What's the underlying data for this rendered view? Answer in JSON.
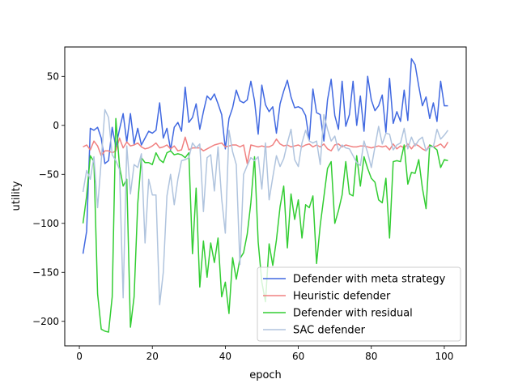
{
  "chart_data": {
    "type": "line",
    "title": "",
    "xlabel": "epoch",
    "ylabel": "utility",
    "xlim": [
      -4,
      106
    ],
    "ylim": [
      -225,
      80
    ],
    "xticks": [
      0,
      20,
      40,
      60,
      80,
      100
    ],
    "yticks": [
      -200,
      -150,
      -100,
      -50,
      0,
      50
    ],
    "legend_position": "lower-right",
    "grid": false,
    "x": [
      1,
      2,
      3,
      4,
      5,
      6,
      7,
      8,
      9,
      10,
      11,
      12,
      13,
      14,
      15,
      16,
      17,
      18,
      19,
      20,
      21,
      22,
      23,
      24,
      25,
      26,
      27,
      28,
      29,
      30,
      31,
      32,
      33,
      34,
      35,
      36,
      37,
      38,
      39,
      40,
      41,
      42,
      43,
      44,
      45,
      46,
      47,
      48,
      49,
      50,
      51,
      52,
      53,
      54,
      55,
      56,
      57,
      58,
      59,
      60,
      61,
      62,
      63,
      64,
      65,
      66,
      67,
      68,
      69,
      70,
      71,
      72,
      73,
      74,
      75,
      76,
      77,
      78,
      79,
      80,
      81,
      82,
      83,
      84,
      85,
      86,
      87,
      88,
      89,
      90,
      91,
      92,
      93,
      94,
      95,
      96,
      97,
      98,
      99,
      100,
      101
    ],
    "series": [
      {
        "name": "Defender with meta strategy",
        "color": "#4169e1",
        "values": [
          -131,
          -108,
          -3,
          -5,
          -2,
          -13,
          -39,
          -36,
          -2,
          -22,
          -4,
          12,
          -17,
          12,
          -19,
          -3,
          -20,
          -13,
          -6,
          -8,
          -5,
          23,
          -13,
          -3,
          -25,
          -2,
          3,
          -6,
          39,
          3,
          8,
          22,
          -4,
          14,
          30,
          26,
          32,
          22,
          11,
          -24,
          7,
          18,
          36,
          25,
          23,
          26,
          45,
          25,
          -9,
          41,
          21,
          14,
          19,
          -8,
          22,
          35,
          46,
          29,
          18,
          19,
          17,
          10,
          -15,
          37,
          13,
          11,
          -16,
          26,
          47,
          10,
          -4,
          45,
          -1,
          11,
          45,
          0,
          30,
          -6,
          50,
          26,
          15,
          20,
          31,
          -7,
          48,
          2,
          14,
          4,
          36,
          5,
          68,
          62,
          40,
          20,
          29,
          7,
          23,
          4,
          45,
          20,
          20
        ]
      },
      {
        "name": "Heuristic defender",
        "color": "#f08080",
        "values": [
          -22,
          -20,
          -25,
          -16,
          -21,
          -31,
          -26,
          -26,
          -28,
          -26,
          -13,
          -23,
          -17,
          -21,
          -20,
          -18,
          -22,
          -24,
          -23,
          -21,
          -18,
          -23,
          -22,
          -20,
          -24,
          -21,
          -26,
          -25,
          -12,
          -25,
          -23,
          -23,
          -23,
          -26,
          -24,
          -22,
          -20,
          -19,
          -18,
          -22,
          -21,
          -20,
          -20,
          -22,
          -20,
          -39,
          -20,
          -21,
          -22,
          -21,
          -22,
          -22,
          -20,
          -14,
          -19,
          -21,
          -20,
          -22,
          -21,
          -20,
          -22,
          -20,
          -19,
          -22,
          -20,
          -22,
          -19,
          -24,
          -26,
          -20,
          -19,
          -22,
          -20,
          -21,
          -22,
          -22,
          -21,
          -21,
          -22,
          -23,
          -22,
          -21,
          -22,
          -21,
          -25,
          -19,
          -24,
          -21,
          -23,
          -19,
          -24,
          -19,
          -21,
          -24,
          -26,
          -20,
          -22,
          -21,
          -19,
          -23,
          -17
        ]
      },
      {
        "name": "Defender with residual",
        "color": "#32cd32",
        "values": [
          -100,
          -72,
          -31,
          -37,
          -172,
          -208,
          -210,
          -211,
          -175,
          7,
          -42,
          -62,
          -55,
          -206,
          -175,
          -80,
          -33,
          -38,
          -38,
          -40,
          -28,
          -35,
          -38,
          -28,
          -26,
          -30,
          -29,
          -30,
          -33,
          -28,
          -131,
          -64,
          -165,
          -118,
          -155,
          -120,
          -140,
          -115,
          -175,
          -160,
          -192,
          -135,
          -157,
          -136,
          -130,
          -111,
          -79,
          -32,
          -119,
          -160,
          -180,
          -121,
          -143,
          -117,
          -83,
          -62,
          -125,
          -70,
          -96,
          -76,
          -115,
          -81,
          -84,
          -72,
          -141,
          -102,
          -73,
          -44,
          -37,
          -100,
          -87,
          -71,
          -37,
          -70,
          -72,
          -31,
          -62,
          -32,
          -44,
          -54,
          -58,
          -76,
          -79,
          -54,
          -115,
          -37,
          -36,
          -37,
          -20,
          -60,
          -48,
          -49,
          -35,
          -64,
          -85,
          -20,
          -22,
          -25,
          -43,
          -35,
          -36
        ]
      },
      {
        "name": "SAC defender",
        "color": "#b0c4de",
        "values": [
          -68,
          -46,
          -55,
          -32,
          -84,
          -36,
          16,
          8,
          -30,
          -36,
          -45,
          -176,
          -21,
          -70,
          -40,
          -43,
          -29,
          -120,
          -55,
          -71,
          -71,
          -183,
          -150,
          -72,
          -50,
          -81,
          -55,
          -36,
          -35,
          -33,
          -18,
          -23,
          -19,
          -88,
          -33,
          -30,
          -67,
          -22,
          -75,
          -110,
          -5,
          -27,
          -40,
          -142,
          -50,
          -41,
          -33,
          -36,
          -32,
          -65,
          -18,
          -76,
          -53,
          -31,
          -42,
          -34,
          -18,
          -4,
          -35,
          -42,
          -18,
          -5,
          -16,
          -18,
          -16,
          -40,
          11,
          -4,
          -16,
          -11,
          -26,
          -20,
          -23,
          -24,
          -31,
          -38,
          -41,
          -16,
          -28,
          -43,
          -22,
          -1,
          -19,
          -8,
          -9,
          -25,
          -20,
          -18,
          -3,
          -24,
          -12,
          -21,
          -15,
          -12,
          -26,
          -22,
          -22,
          -4,
          -14,
          -10,
          -5
        ]
      }
    ]
  }
}
